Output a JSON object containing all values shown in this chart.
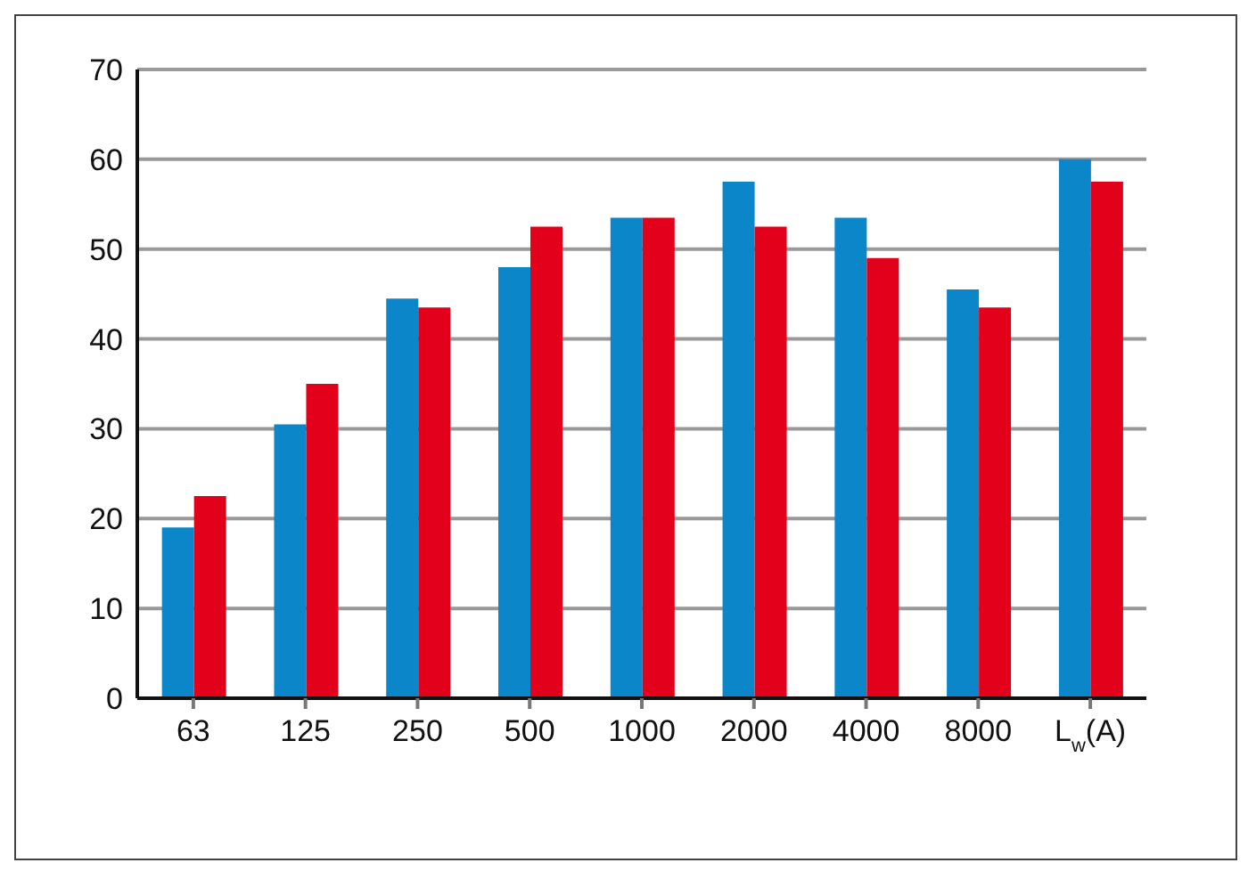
{
  "chart_data": {
    "type": "bar",
    "categories": [
      "63",
      "125",
      "250",
      "500",
      "1000",
      "2000",
      "4000",
      "8000",
      "L$_{w}$(A)"
    ],
    "series": [
      {
        "color": "#0a86c9",
        "values": [
          19,
          30.5,
          44.5,
          48,
          53.5,
          57.5,
          53.5,
          45.5,
          60
        ]
      },
      {
        "color": "#e2001a",
        "values": [
          22.5,
          35,
          43.5,
          52.5,
          53.5,
          52.5,
          49,
          43.5,
          57.5
        ]
      }
    ],
    "ylim": [
      0,
      70
    ],
    "yticks": [
      0,
      10,
      20,
      30,
      40,
      50,
      60,
      70
    ],
    "grid": "y",
    "legend": false
  }
}
